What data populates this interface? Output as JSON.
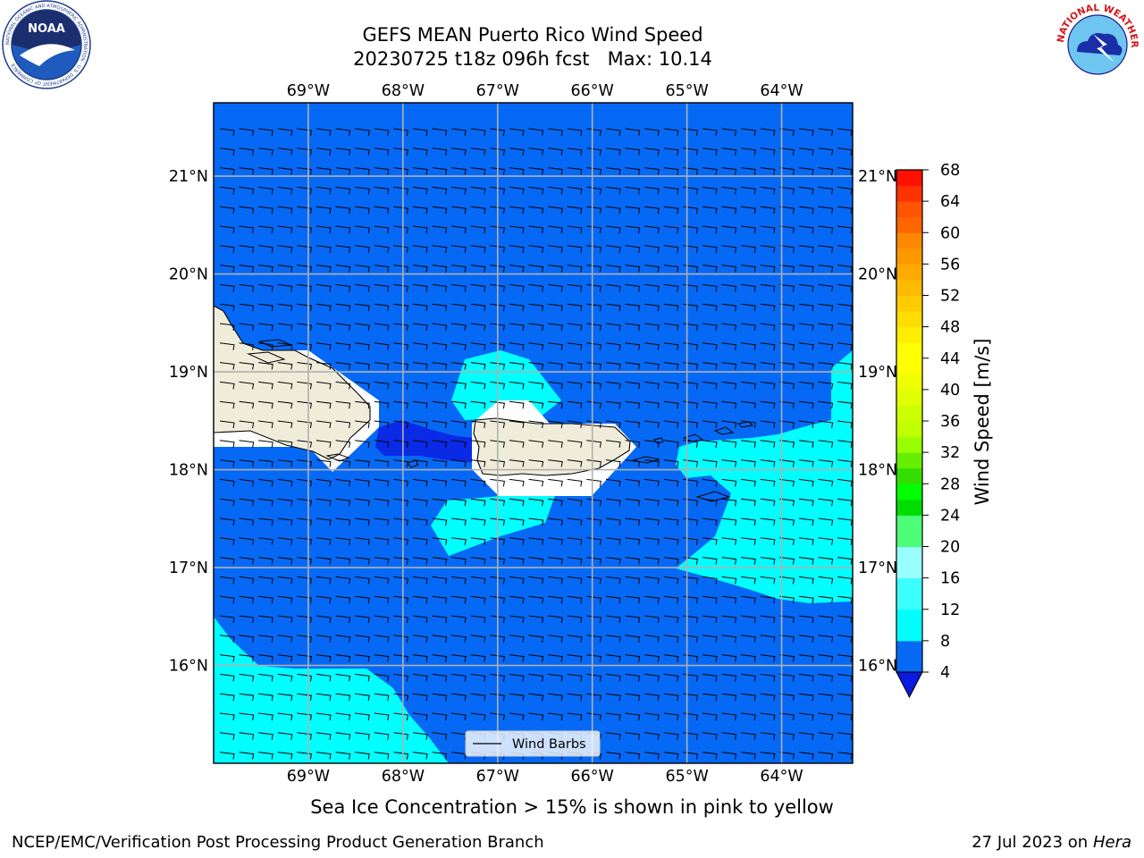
{
  "title": {
    "line1": "GEFS MEAN Puerto Rico Wind Speed",
    "line2": "20230725 t18z 096h fcst   Max: 10.14"
  },
  "logos": {
    "left": {
      "icon": "noaa-logo-icon",
      "text": "NOAA",
      "ring_text": "NATIONAL OCEANIC AND ATMOSPHERIC ADMINISTRATION · U.S. DEPARTMENT OF COMMERCE"
    },
    "right": {
      "icon": "nws-logo-icon",
      "ring_text": "NATIONAL WEATHER SERVICE"
    }
  },
  "map": {
    "lon_ticks": [
      "69°W",
      "68°W",
      "67°W",
      "66°W",
      "65°W",
      "64°W"
    ],
    "lat_ticks": [
      "21°N",
      "20°N",
      "19°N",
      "18°N",
      "17°N",
      "16°N"
    ],
    "lon_values": [
      -69,
      -68,
      -67,
      -66,
      -65,
      -64
    ],
    "lat_values": [
      21,
      20,
      19,
      18,
      17,
      16
    ],
    "lon_range": [
      -70,
      -63.25
    ],
    "lat_range": [
      15,
      21.75
    ],
    "grid": true,
    "legend": {
      "label": "Wind Barbs",
      "placement": "bottom-center"
    },
    "colors": {
      "ocean": "#0569f5",
      "cyan": "#00ffff",
      "dark": "#0a2ae6",
      "land": "#efedda",
      "white": "#ffffff"
    }
  },
  "colorbar": {
    "label": "Wind Speed [m/s]",
    "ticks": [
      "4",
      "8",
      "12",
      "16",
      "20",
      "24",
      "28",
      "32",
      "36",
      "40",
      "44",
      "48",
      "52",
      "56",
      "60",
      "64",
      "68"
    ],
    "levels": [
      4,
      8,
      10,
      12,
      14,
      16,
      18,
      20,
      22,
      24,
      26,
      28,
      30,
      32,
      34,
      36,
      38,
      40,
      42,
      44,
      46,
      48,
      50,
      52,
      54,
      56,
      58,
      60,
      62,
      64,
      66,
      68
    ],
    "colors": [
      "#0569f5",
      "#00ffff",
      "#00ffff",
      "#3dffff",
      "#3dffff",
      "#99ffff",
      "#99ffff",
      "#4dff77",
      "#4dff77",
      "#00dd00",
      "#00ff00",
      "#33dd00",
      "#66ee00",
      "#99ff00",
      "#c0ff00",
      "#ccff00",
      "#e0ff00",
      "#eeff00",
      "#ffff00",
      "#ffff00",
      "#ffee00",
      "#ffdd00",
      "#ffcc00",
      "#ffbb00",
      "#ffaa00",
      "#ff9900",
      "#ff8800",
      "#ff6600",
      "#ff5500",
      "#ff3300",
      "#ff1100",
      "#ff0000"
    ],
    "extend": "min",
    "under_color": "#0a1ae0"
  },
  "subtitle": "Sea Ice Concentration > 15% is shown in pink to yellow",
  "footer": {
    "left": "NCEP/EMC/Verification Post Processing Product Generation Branch",
    "right_prefix": "27 Jul 2023 on ",
    "right_host": "Hera"
  }
}
